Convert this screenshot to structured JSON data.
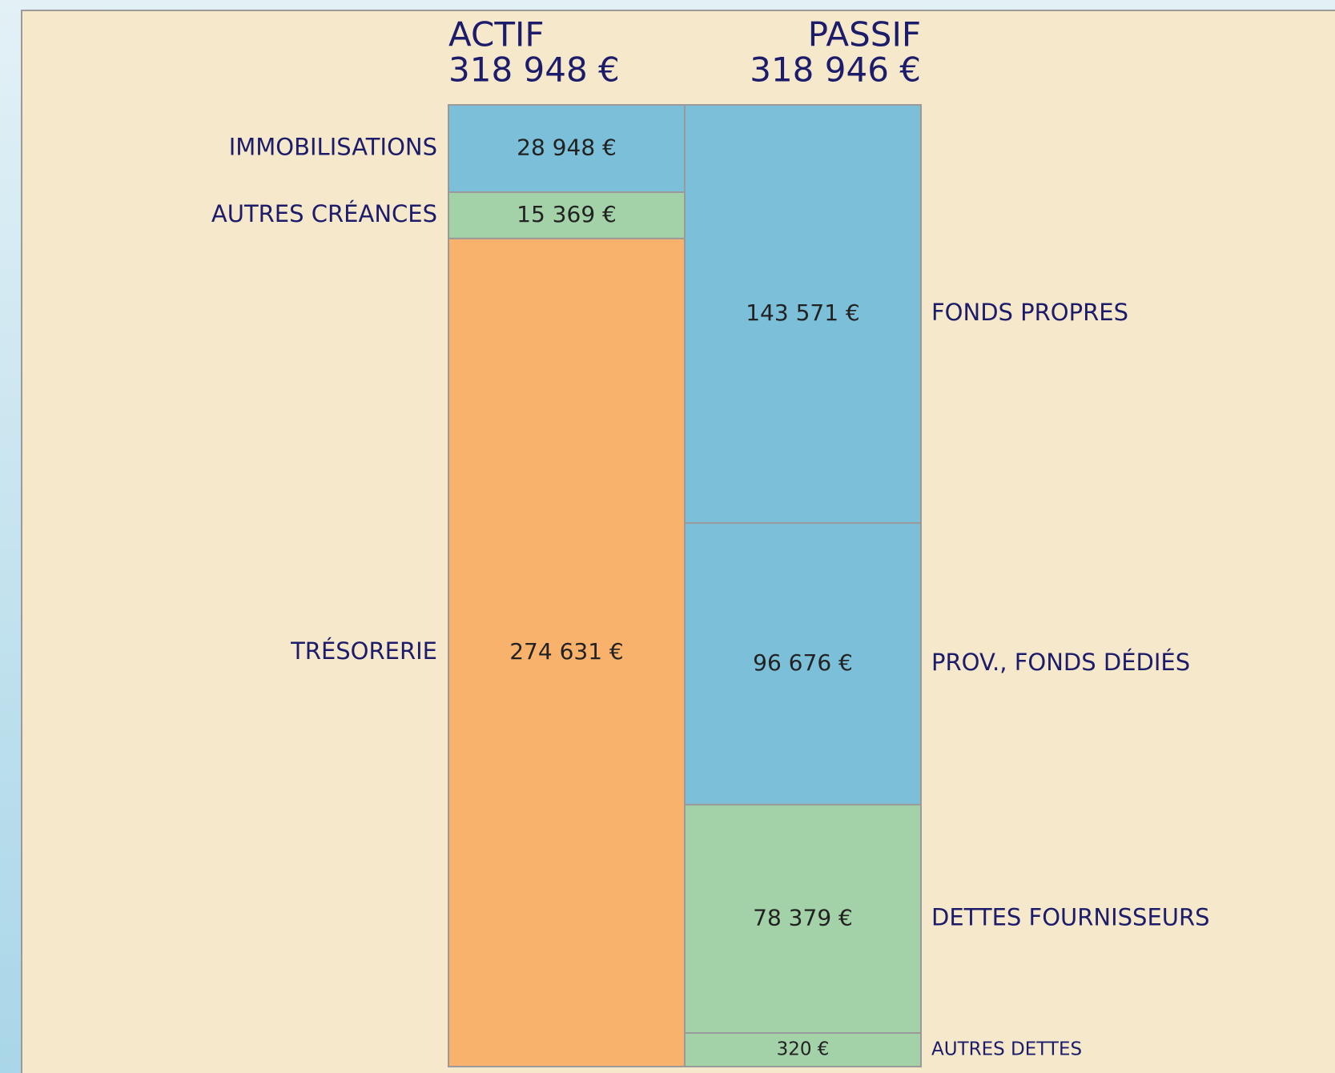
{
  "chart_data": {
    "type": "balance",
    "columns": [
      {
        "name": "ACTIF",
        "total": 318948,
        "total_label": "318 948 €",
        "categories": [
          "IMMOBILISATIONS",
          "AUTRES CRÉANCES",
          "TRÉSORERIE"
        ],
        "values": [
          28948,
          15369,
          274631
        ],
        "value_labels": [
          "28 948 €",
          "15 369 €",
          "274 631 €"
        ],
        "colors": [
          "#7bbfd9",
          "#a3d2a8",
          "#f9b26b"
        ]
      },
      {
        "name": "PASSIF",
        "total": 318946,
        "total_label": "318 946 €",
        "categories": [
          "FONDS PROPRES",
          "PROV., FONDS DÉDIÉS",
          "DETTES FOURNISSEURS",
          "AUTRES DETTES"
        ],
        "values": [
          143571,
          96676,
          78379,
          320
        ],
        "value_labels": [
          "143 571 €",
          "96 676 €",
          "78 379 €",
          "320 €"
        ],
        "colors": [
          "#7bbfd9",
          "#7bbfd9",
          "#a3d2a8",
          "#a3d2a8"
        ]
      }
    ]
  }
}
